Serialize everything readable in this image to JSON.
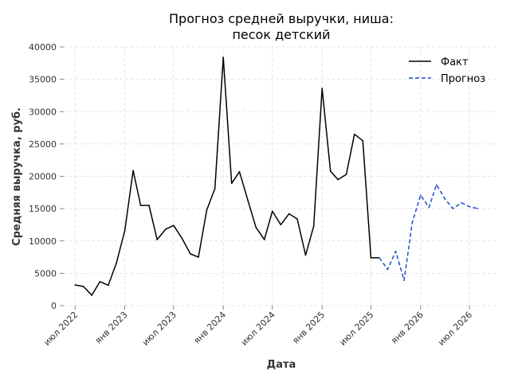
{
  "chart_data": {
    "type": "line",
    "title_line1": "Прогноз средней выручки, ниша:",
    "title_line2": "песок детский",
    "xlabel": "Дата",
    "ylabel": "Средняя выручка, руб.",
    "ylim": [
      0,
      40000
    ],
    "y_ticks": [
      0,
      5000,
      10000,
      15000,
      20000,
      25000,
      30000,
      35000,
      40000
    ],
    "x_ticks": [
      {
        "date": "2022-07-01",
        "label": "июл 2022"
      },
      {
        "date": "2023-01-01",
        "label": "янв 2023"
      },
      {
        "date": "2023-07-01",
        "label": "июл 2023"
      },
      {
        "date": "2024-01-01",
        "label": "янв 2024"
      },
      {
        "date": "2024-07-01",
        "label": "июл 2024"
      },
      {
        "date": "2025-01-01",
        "label": "янв 2025"
      },
      {
        "date": "2025-07-01",
        "label": "июл 2025"
      },
      {
        "date": "2026-01-01",
        "label": "янв 2026"
      },
      {
        "date": "2026-07-01",
        "label": "июл 2026"
      }
    ],
    "grid": true,
    "legend_position": "top-right",
    "series": [
      {
        "name": "Факт",
        "color": "#000000",
        "style": "solid",
        "points": [
          [
            "2022-07-01",
            3200
          ],
          [
            "2022-08-01",
            2950
          ],
          [
            "2022-09-01",
            1600
          ],
          [
            "2022-10-01",
            3700
          ],
          [
            "2022-11-01",
            3150
          ],
          [
            "2022-12-01",
            6600
          ],
          [
            "2023-01-01",
            11600
          ],
          [
            "2023-02-01",
            20900
          ],
          [
            "2023-03-01",
            15500
          ],
          [
            "2023-04-01",
            15500
          ],
          [
            "2023-05-01",
            10200
          ],
          [
            "2023-06-01",
            11800
          ],
          [
            "2023-07-01",
            12400
          ],
          [
            "2023-08-01",
            10400
          ],
          [
            "2023-09-01",
            8000
          ],
          [
            "2023-10-01",
            7500
          ],
          [
            "2023-11-01",
            14800
          ],
          [
            "2023-12-01",
            18100
          ],
          [
            "2024-01-01",
            38400
          ],
          [
            "2024-02-01",
            18900
          ],
          [
            "2024-03-01",
            20700
          ],
          [
            "2024-04-01",
            16300
          ],
          [
            "2024-05-01",
            12100
          ],
          [
            "2024-06-01",
            10200
          ],
          [
            "2024-07-01",
            14600
          ],
          [
            "2024-08-01",
            12500
          ],
          [
            "2024-09-01",
            14200
          ],
          [
            "2024-10-01",
            13400
          ],
          [
            "2024-11-01",
            7800
          ],
          [
            "2024-12-01",
            12300
          ],
          [
            "2025-01-01",
            33600
          ],
          [
            "2025-02-01",
            20800
          ],
          [
            "2025-03-01",
            19500
          ],
          [
            "2025-04-01",
            20300
          ],
          [
            "2025-05-01",
            26500
          ],
          [
            "2025-06-01",
            25500
          ],
          [
            "2025-07-01",
            7400
          ],
          [
            "2025-08-01",
            7400
          ]
        ]
      },
      {
        "name": "Прогноз",
        "color": "#1a4fcc",
        "style": "dashed",
        "points": [
          [
            "2025-08-01",
            7400
          ],
          [
            "2025-09-01",
            5600
          ],
          [
            "2025-10-01",
            8400
          ],
          [
            "2025-11-01",
            3900
          ],
          [
            "2025-12-01",
            12800
          ],
          [
            "2026-01-01",
            17100
          ],
          [
            "2026-02-01",
            15200
          ],
          [
            "2026-03-01",
            18700
          ],
          [
            "2026-04-01",
            16500
          ],
          [
            "2026-05-01",
            15000
          ],
          [
            "2026-06-01",
            15900
          ],
          [
            "2026-07-01",
            15300
          ],
          [
            "2026-08-01",
            15000
          ]
        ]
      }
    ]
  }
}
